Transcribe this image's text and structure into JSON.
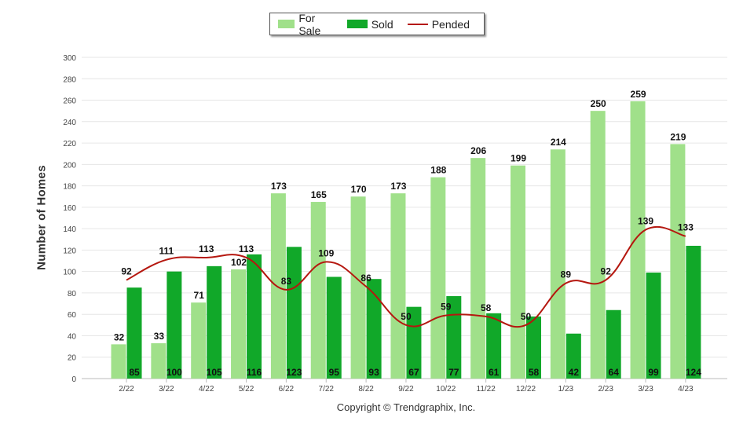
{
  "chart_data": {
    "type": "bar",
    "categories": [
      "2/22",
      "3/22",
      "4/22",
      "5/22",
      "6/22",
      "7/22",
      "8/22",
      "9/22",
      "10/22",
      "11/22",
      "12/22",
      "1/23",
      "2/23",
      "3/23",
      "4/23"
    ],
    "series": [
      {
        "name": "For Sale",
        "kind": "bar",
        "color": "#a0e08a",
        "values": [
          32,
          33,
          71,
          102,
          173,
          165,
          170,
          173,
          188,
          206,
          199,
          214,
          250,
          259,
          219
        ]
      },
      {
        "name": "Sold",
        "kind": "bar",
        "color": "#11a829",
        "values": [
          85,
          100,
          105,
          116,
          123,
          95,
          93,
          67,
          77,
          61,
          58,
          42,
          64,
          99,
          124
        ]
      },
      {
        "name": "Pended",
        "kind": "line",
        "color": "#b5170f",
        "values": [
          92,
          111,
          113,
          113,
          83,
          109,
          86,
          50,
          59,
          58,
          50,
          89,
          92,
          139,
          133
        ]
      }
    ],
    "ylabel": "Number of Homes",
    "xlabel": "",
    "ylim": [
      0,
      300
    ],
    "yticks": [
      0,
      20,
      40,
      60,
      80,
      100,
      120,
      140,
      160,
      180,
      200,
      220,
      240,
      260,
      280,
      300
    ],
    "grid": true,
    "legend_position": "top-center"
  },
  "footer": {
    "copyright": "Copyright © Trendgraphix, Inc."
  }
}
